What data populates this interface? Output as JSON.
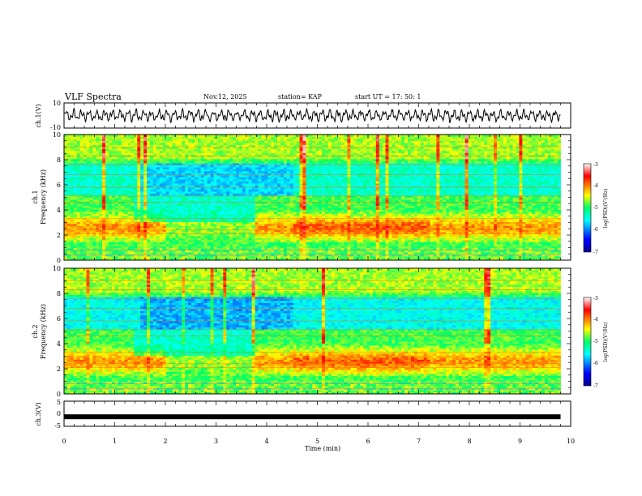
{
  "header": {
    "title": "VLF Spectra",
    "date": "Nov.12, 2025",
    "station": "station= KAP",
    "start": "start  UT  =    17: 50: 1"
  },
  "chart_data": [
    {
      "type": "line",
      "name": "ch1-waveform",
      "ylabel": "ch.1(V)",
      "xlim": [
        0,
        10
      ],
      "ylim": [
        -10,
        10
      ],
      "yticks": [
        "-10",
        "10"
      ],
      "signal_extent_min": 9.8,
      "amplitude_typical": 4
    },
    {
      "type": "heatmap",
      "name": "ch1-spectrogram",
      "ylabel_top": "ch.1",
      "ylabel": "Frequency (kHz)",
      "xlim": [
        0,
        10
      ],
      "ylim": [
        0,
        10
      ],
      "yticks": [
        "0",
        "2",
        "4",
        "6",
        "8",
        "10"
      ],
      "colorbar": {
        "label": "log(PSD)(V²/Hz)",
        "range": [
          -7,
          -3
        ],
        "ticks": [
          "-3",
          "-4",
          "-5",
          "-6",
          "-7"
        ]
      },
      "data_extent_min": 9.8
    },
    {
      "type": "heatmap",
      "name": "ch2-spectrogram",
      "ylabel_top": "ch.2",
      "ylabel": "Frequency (kHz)",
      "xlim": [
        0,
        10
      ],
      "ylim": [
        0,
        10
      ],
      "yticks": [
        "0",
        "2",
        "4",
        "6",
        "8",
        "10"
      ],
      "colorbar": {
        "label": "log(PSD)(V²/Hz)",
        "range": [
          -7,
          -3
        ],
        "ticks": [
          "-3",
          "-4",
          "-5",
          "-6",
          "-7"
        ]
      },
      "data_extent_min": 9.8
    },
    {
      "type": "line",
      "name": "ch3-waveform",
      "ylabel": "ch.3(V)",
      "xlim": [
        0,
        10
      ],
      "ylim": [
        -5,
        5
      ],
      "yticks": [
        "-5",
        "0",
        "5"
      ],
      "level": -1.2,
      "signal_extent_min": 9.8
    }
  ],
  "xaxis": {
    "label": "Time  (min)",
    "ticks": [
      "0",
      "1",
      "2",
      "3",
      "4",
      "5",
      "6",
      "7",
      "8",
      "9",
      "10"
    ]
  },
  "colors": {
    "waveform": "#000000",
    "frame": "#000000"
  }
}
